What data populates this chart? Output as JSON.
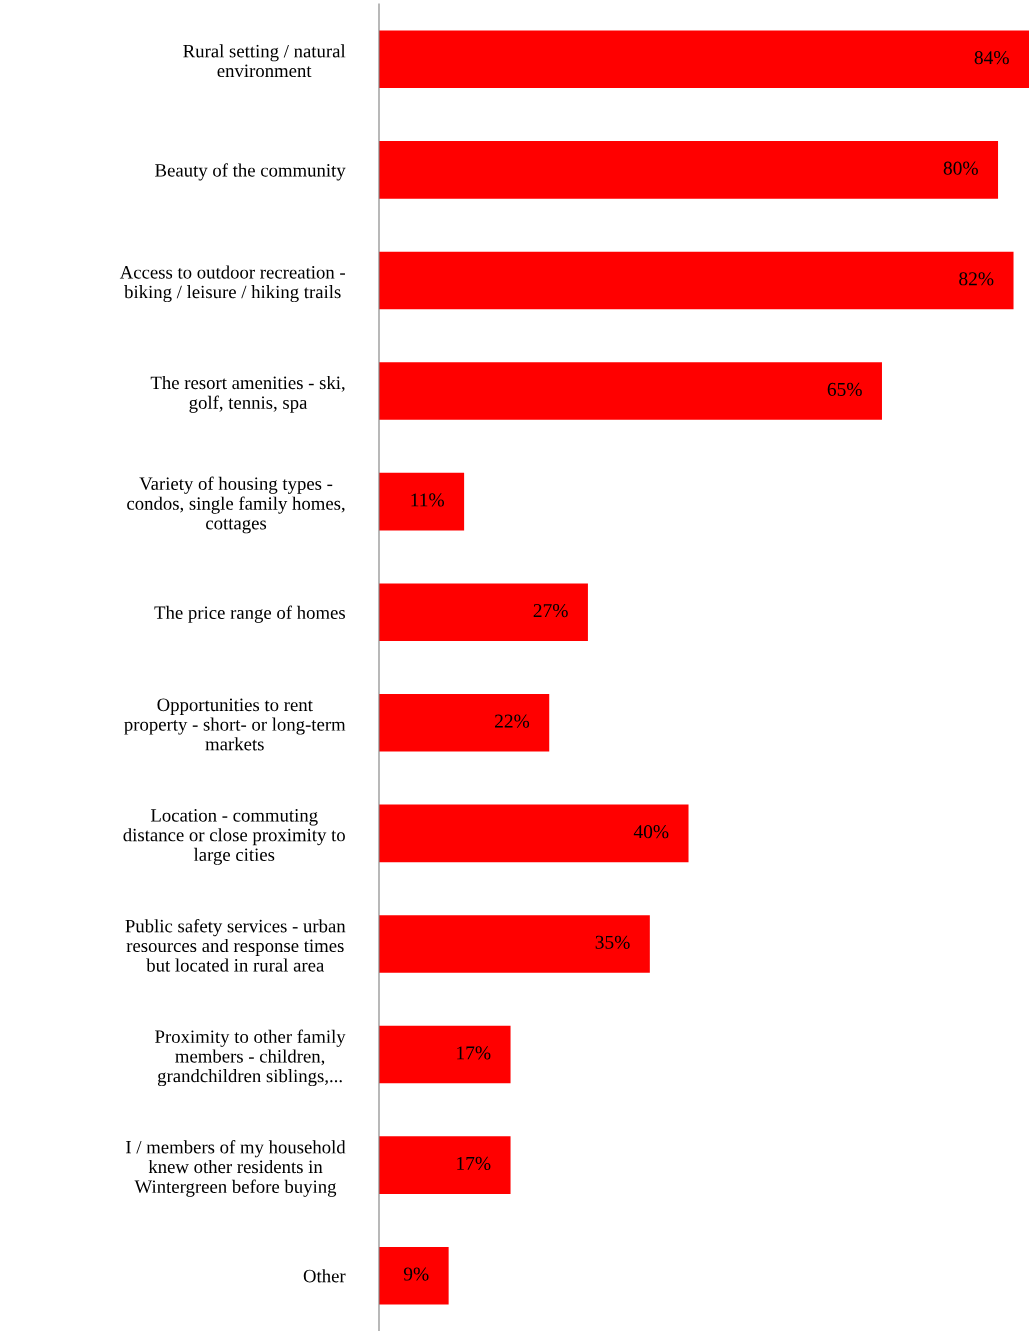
{
  "chart_data": {
    "type": "bar",
    "orientation": "horizontal",
    "categories": [
      "Rural setting / natural\nenvironment",
      "Beauty of the community",
      "Access to outdoor recreation -\nbiking / leisure / hiking trails",
      "The resort amenities - ski,\ngolf, tennis, spa",
      "Variety of housing types -\ncondos, single family homes,\ncottages",
      "The price range of homes",
      "Opportunities to rent\nproperty - short- or long-term\nmarkets",
      "Location - commuting\ndistance or close proximity to\nlarge cities",
      "Public safety services - urban\nresources and response times\nbut located in rural area",
      "Proximity to other family\nmembers - children,\ngrandchildren siblings,...",
      "I / members of my household\nknew other residents in\nWintergreen before buying",
      "Other"
    ],
    "values": [
      84,
      80,
      82,
      65,
      11,
      27,
      22,
      40,
      35,
      17,
      17,
      9
    ],
    "value_labels": [
      "84%",
      "80%",
      "82%",
      "65%",
      "11%",
      "27%",
      "22%",
      "40%",
      "35%",
      "17%",
      "17%",
      "9%"
    ],
    "color": "#ff0000",
    "xlim": [
      0,
      84
    ],
    "tick_labels": "y",
    "grid": false,
    "legend": false
  }
}
